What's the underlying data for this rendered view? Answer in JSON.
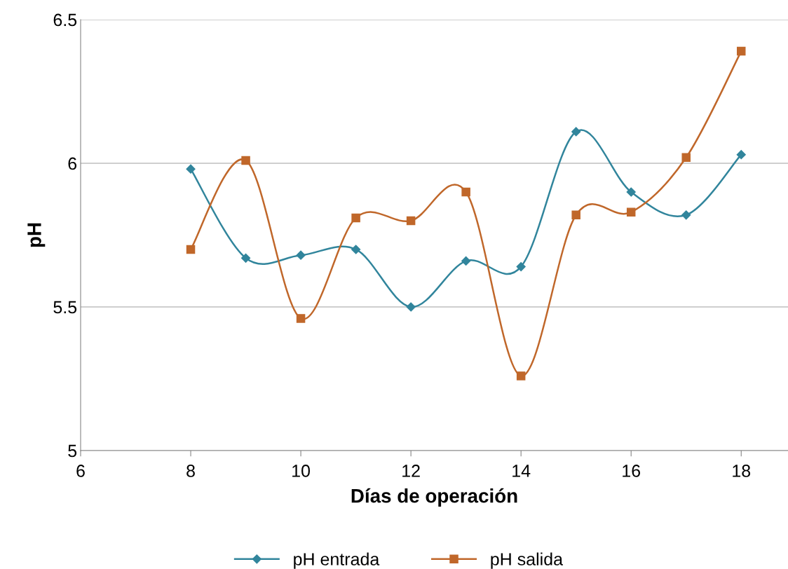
{
  "chart_data": {
    "type": "line",
    "xlabel": "Días de operación",
    "ylabel": "pH",
    "x": [
      8,
      9,
      10,
      11,
      12,
      13,
      14,
      15,
      16,
      17,
      18
    ],
    "series": [
      {
        "name": "pH entrada",
        "color": "#31859c",
        "marker": "diamond",
        "values": [
          5.98,
          5.67,
          5.68,
          5.7,
          5.5,
          5.66,
          5.64,
          6.11,
          5.9,
          5.82,
          6.03
        ]
      },
      {
        "name": "pH salida",
        "color": "#c0672a",
        "marker": "square",
        "values": [
          5.7,
          6.01,
          5.46,
          5.81,
          5.8,
          5.9,
          5.26,
          5.82,
          5.83,
          6.02,
          6.39
        ]
      }
    ],
    "xlim": [
      6,
      18.85
    ],
    "xticks": [
      6,
      8,
      10,
      12,
      14,
      16,
      18
    ],
    "ylim": [
      5,
      6.5
    ],
    "yticks": [
      5,
      5.5,
      6,
      6.5
    ],
    "grid": "y",
    "legend": "bottom",
    "line_style": "solid"
  }
}
